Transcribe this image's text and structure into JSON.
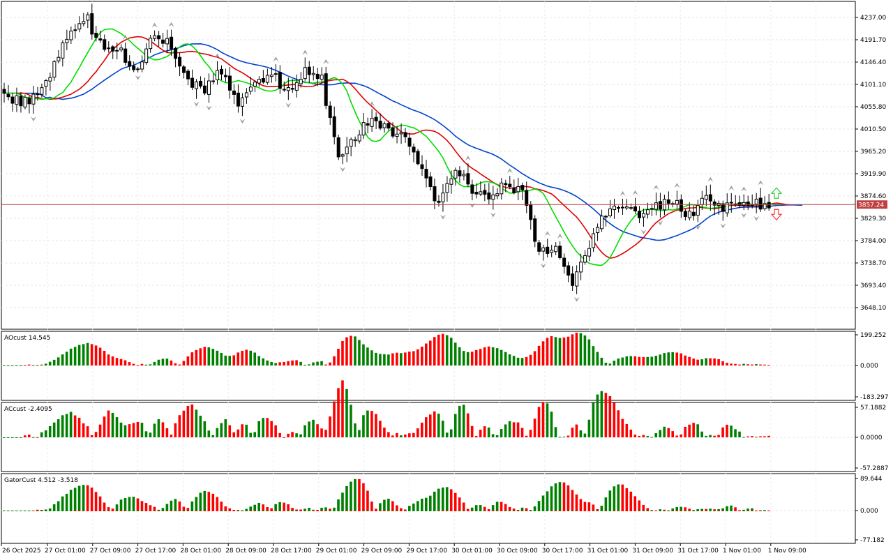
{
  "main_chart": {
    "y_ticks": [
      "4237.00",
      "4191.70",
      "4146.40",
      "4101.10",
      "4055.80",
      "4010.50",
      "3965.20",
      "3919.90",
      "3874.60",
      "3829.30",
      "3784.00",
      "3738.70",
      "3693.40",
      "3648.10"
    ],
    "current_price": "3857.24",
    "colors": {
      "fast_ma": "#00dd00",
      "mid_ma": "#dd0000",
      "slow_ma": "#0044cc",
      "price_line": "#c04040",
      "arrow_up": "#33cc33",
      "arrow_down": "#ff3333"
    }
  },
  "panels": {
    "ao": {
      "label": "AOcust 14.545",
      "y_ticks": [
        "199.252",
        "0.000",
        "-183.297"
      ]
    },
    "ac": {
      "label": "ACcust -2.4095",
      "y_ticks": [
        "57.1882",
        "0.0000",
        "-57.2887"
      ]
    },
    "gator": {
      "label": "GatorCust 4.512 -3.518",
      "y_ticks": [
        "89.644",
        "0.000",
        "-77.182"
      ]
    }
  },
  "x_labels": [
    "26 Oct 2025",
    "27 Oct 01:00",
    "27 Oct 09:00",
    "27 Oct 17:00",
    "28 Oct 01:00",
    "28 Oct 09:00",
    "28 Oct 17:00",
    "29 Oct 01:00",
    "29 Oct 09:00",
    "29 Oct 17:00",
    "30 Oct 01:00",
    "30 Oct 09:00",
    "30 Oct 17:00",
    "31 Oct 01:00",
    "31 Oct 09:00",
    "31 Oct 17:00",
    "1 Nov 01:00",
    "1 Nov 09:00"
  ],
  "bar_colors": {
    "up": "#008000",
    "down": "#ff0000",
    "candle": "#000000"
  }
}
